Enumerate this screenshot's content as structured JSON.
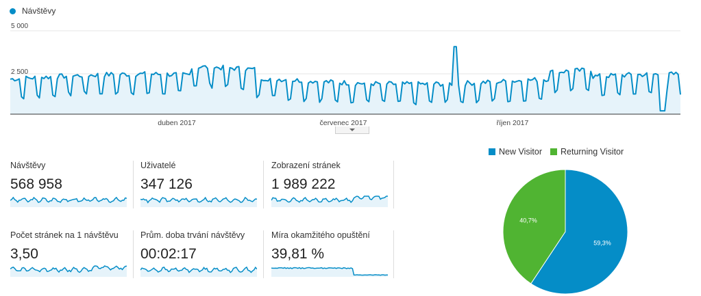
{
  "main_chart": {
    "legend_label": "Návštěvy",
    "series_color": "#058dc7",
    "y_ticks": [
      "5 000",
      "2 500"
    ],
    "x_ticks": [
      "duben 2017",
      "červenec 2017",
      "říjen 2017"
    ]
  },
  "metrics": [
    {
      "label": "Návštěvy",
      "value": "568 958"
    },
    {
      "label": "Uživatelé",
      "value": "347 126"
    },
    {
      "label": "Zobrazení stránek",
      "value": "1 989 222"
    },
    {
      "label": "Počet stránek na 1 návštěvu",
      "value": "3,50"
    },
    {
      "label": "Prům. doba trvání návštěvy",
      "value": "00:02:17"
    },
    {
      "label": "Míra okamžitého opuštění",
      "value": "39,81 %"
    }
  ],
  "chart_data": {
    "type": "pie",
    "labels": [
      "New Visitor",
      "Returning Visitor"
    ],
    "values": [
      59.3,
      40.7
    ],
    "value_labels": [
      "59,3%",
      "40,7%"
    ],
    "colors": [
      "#058dc7",
      "#50b432"
    ],
    "legend_position": "top"
  }
}
